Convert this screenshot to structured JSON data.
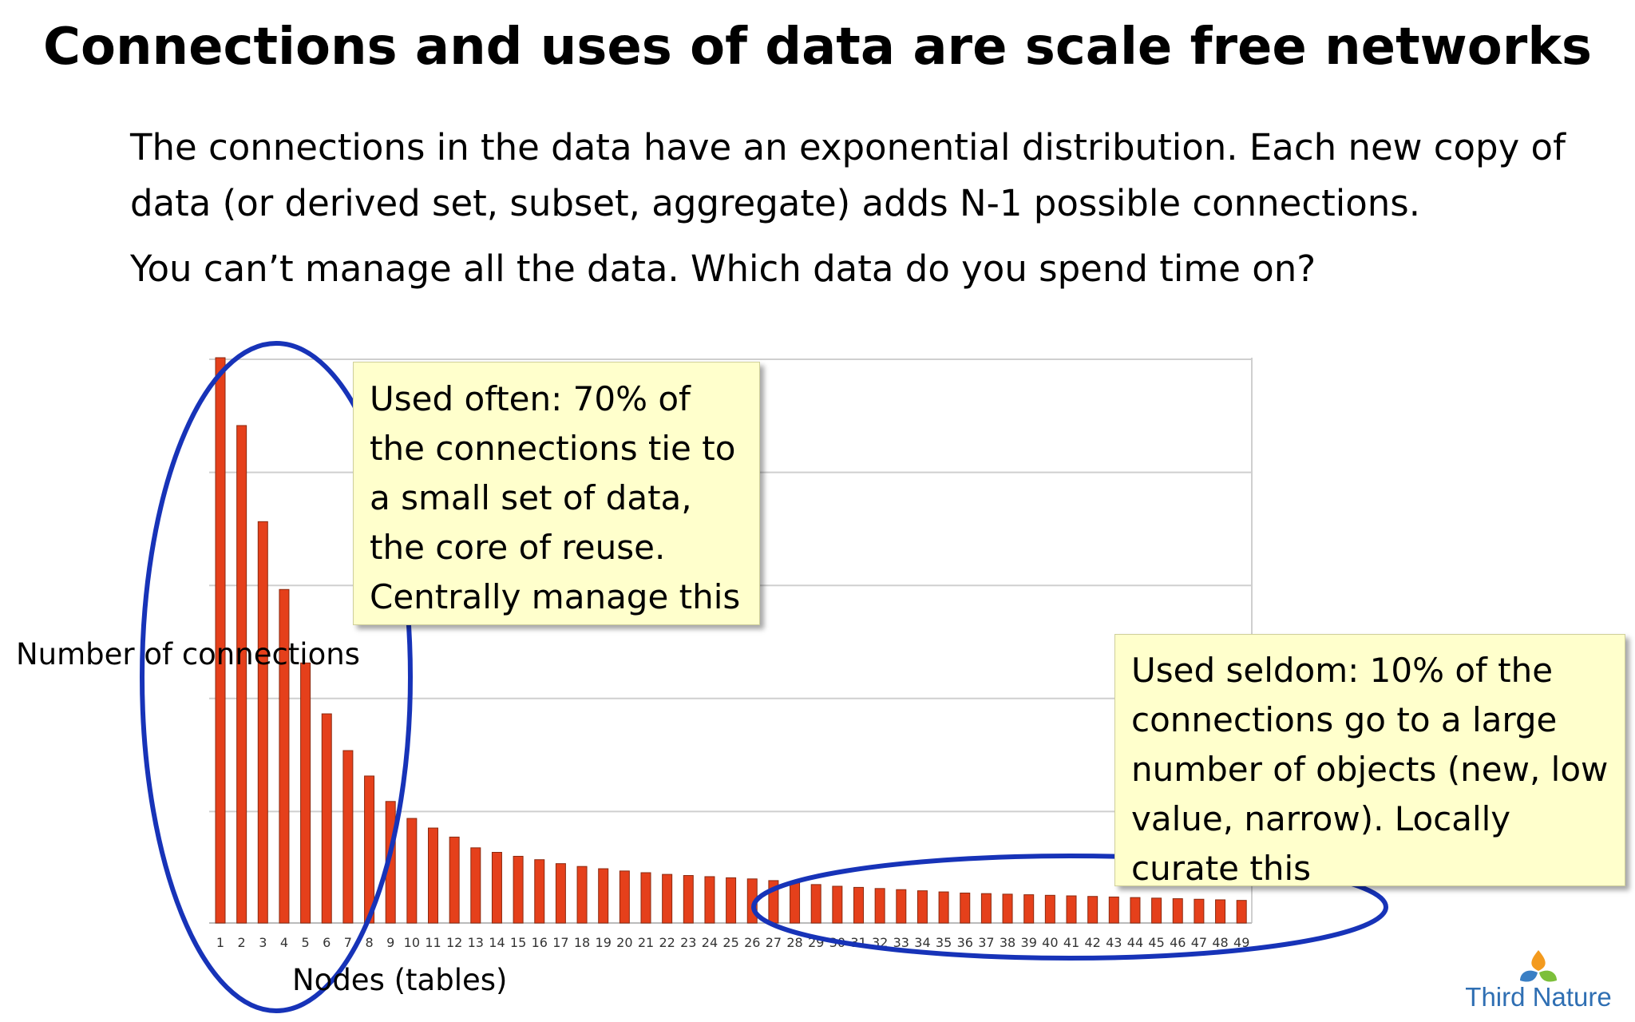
{
  "title": "Connections and uses of data are scale free networks",
  "body": {
    "paragraph1": "The connections in the data have an exponential distribution. Each new copy of data (or derived set, subset, aggregate) adds N-1 possible connections.",
    "paragraph2": "You can’t manage all the data. Which data do you spend time on?"
  },
  "callouts": {
    "often": "Used often: 70% of the connections tie to a small set of data, the core of reuse. Centrally manage this",
    "seldom": "Used seldom: 10% of the connections go to a large number of objects (new, low value, narrow). Locally curate this"
  },
  "logo": {
    "text": "Third Nature"
  },
  "colors": {
    "bar": "#e5401b",
    "bar_edge": "#8a2a10",
    "ellipse": "#1733b8",
    "callout_bg": "#ffffcc",
    "grid": "#cfcfcf"
  },
  "chart_data": {
    "type": "bar",
    "title": "",
    "xlabel": "Nodes (tables)",
    "ylabel": "Number of connections",
    "grid": true,
    "legend": "none",
    "ylim": [
      0,
      100
    ],
    "categories": [
      "1",
      "2",
      "3",
      "4",
      "5",
      "6",
      "7",
      "8",
      "9",
      "10",
      "11",
      "12",
      "13",
      "14",
      "15",
      "16",
      "17",
      "18",
      "19",
      "20",
      "21",
      "22",
      "23",
      "24",
      "25",
      "26",
      "27",
      "28",
      "29",
      "30",
      "31",
      "32",
      "33",
      "34",
      "35",
      "36",
      "37",
      "38",
      "39",
      "40",
      "41",
      "42",
      "43",
      "44",
      "45",
      "46",
      "47",
      "48",
      "49"
    ],
    "values": [
      100,
      88,
      71,
      59,
      46,
      37,
      30.5,
      26,
      21.5,
      18.5,
      16.8,
      15.2,
      13.3,
      12.5,
      11.8,
      11.2,
      10.5,
      10,
      9.6,
      9.2,
      8.9,
      8.6,
      8.4,
      8.2,
      8,
      7.8,
      7.5,
      7.1,
      6.8,
      6.5,
      6.3,
      6.1,
      5.9,
      5.7,
      5.5,
      5.3,
      5.2,
      5.1,
      5,
      4.9,
      4.8,
      4.7,
      4.6,
      4.5,
      4.4,
      4.3,
      4.2,
      4.1,
      4
    ]
  }
}
